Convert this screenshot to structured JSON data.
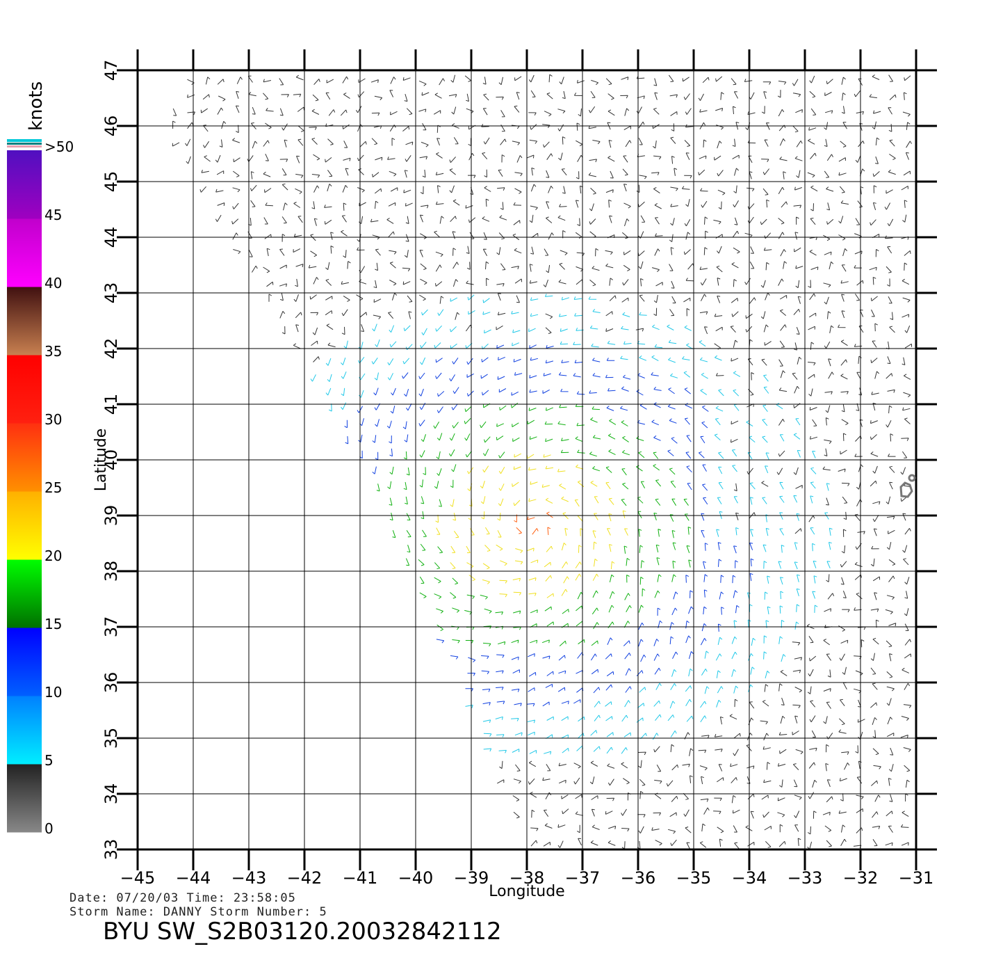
{
  "plot": {
    "x_axis_title": "Longitude",
    "y_axis_title": "Latitude",
    "x_ticks": [
      "−45",
      "−44",
      "−43",
      "−42",
      "−41",
      "−40",
      "−39",
      "−38",
      "−37",
      "−36",
      "−35",
      "−34",
      "−33",
      "−32",
      "−31"
    ],
    "y_ticks": [
      "33",
      "34",
      "35",
      "36",
      "37",
      "38",
      "39",
      "40",
      "41",
      "42",
      "43",
      "44",
      "45",
      "46",
      "47"
    ],
    "lon_range": [
      -45,
      -31
    ],
    "lat_range": [
      33,
      47
    ]
  },
  "colorbar": {
    "unit": "knots",
    "labels": [
      "0",
      "5",
      "10",
      "15",
      "20",
      "25",
      "30",
      "35",
      "40",
      "45",
      ">50"
    ],
    "bands": [
      {
        "from": 0,
        "to": 5,
        "colors": [
          "#888888",
          "#222222"
        ]
      },
      {
        "from": 5,
        "to": 10,
        "colors": [
          "#00eeff",
          "#0080ff"
        ]
      },
      {
        "from": 10,
        "to": 15,
        "colors": [
          "#0060ff",
          "#0000ff"
        ]
      },
      {
        "from": 15,
        "to": 20,
        "colors": [
          "#007000",
          "#00ff00"
        ]
      },
      {
        "from": 20,
        "to": 25,
        "colors": [
          "#ffff00",
          "#ffb000"
        ]
      },
      {
        "from": 25,
        "to": 30,
        "colors": [
          "#ff9000",
          "#ff3010"
        ]
      },
      {
        "from": 30,
        "to": 35,
        "colors": [
          "#ff2010",
          "#ff0000"
        ]
      },
      {
        "from": 35,
        "to": 40,
        "colors": [
          "#c88050",
          "#401010"
        ]
      },
      {
        "from": 40,
        "to": 45,
        "colors": [
          "#ff00ff",
          "#c000cc"
        ]
      },
      {
        "from": 45,
        "to": 50,
        "colors": [
          "#a000c0",
          "#5010c0"
        ]
      }
    ]
  },
  "metadata": {
    "date_line": "Date: 07/20/03   Time: 23:58:05",
    "storm_line": "Storm Name: DANNY   Storm Number: 5",
    "file_id": "BYU SW_S2B03120.20032842112"
  },
  "swath": {
    "polygon": [
      [
        -44.6,
        46.1
      ],
      [
        -44.0,
        47.0
      ],
      [
        -31.0,
        47.0
      ],
      [
        -31.0,
        33.0
      ],
      [
        -37.95,
        33.0
      ],
      [
        -40.9,
        39.8
      ]
    ],
    "vector_colors": {
      "calm": "#333333",
      "light": "#20c8e8",
      "moderate": "#1040e0",
      "fresh": "#10b010",
      "strong": "#f0e020",
      "gale": "#ff6010"
    }
  }
}
